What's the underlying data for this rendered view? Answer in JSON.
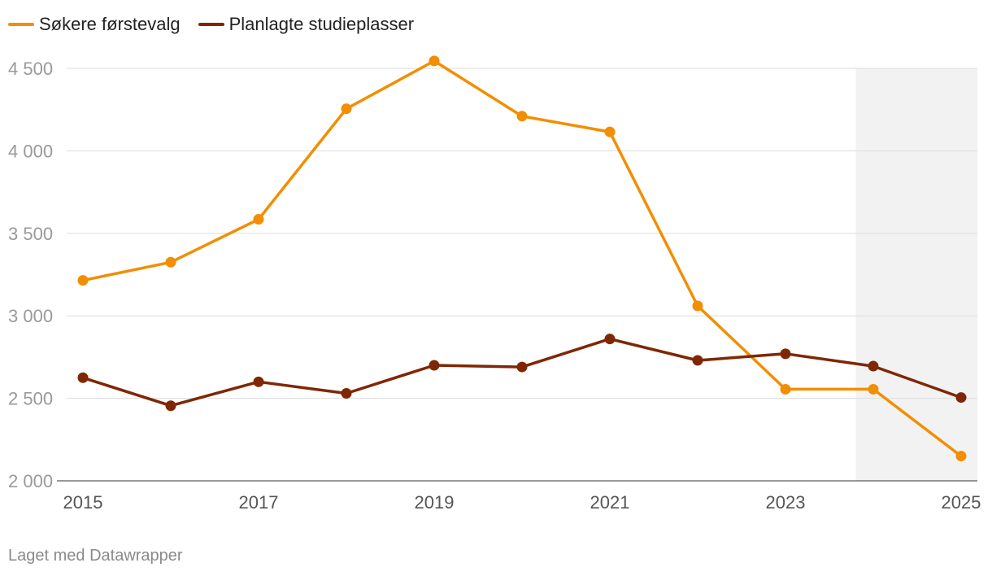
{
  "legend": [
    {
      "label": "Søkere førstevalg",
      "color": "#f28e00"
    },
    {
      "label": "Planlagte studieplasser",
      "color": "#7f2704"
    }
  ],
  "footer": "Laget med Datawrapper",
  "colors": {
    "grid": "#dddddd",
    "axis_text": "#999999",
    "x_axis_text": "#555555",
    "shade": "#f2f2f2"
  },
  "chart_data": {
    "type": "line",
    "x": [
      2015,
      2016,
      2017,
      2018,
      2019,
      2020,
      2021,
      2022,
      2023,
      2024,
      2025
    ],
    "x_tick_labels": [
      "2015",
      "2017",
      "2019",
      "2021",
      "2023",
      "2025"
    ],
    "y_tick_labels": [
      "2 000",
      "2 500",
      "3 000",
      "3 500",
      "4 000",
      "4 500"
    ],
    "ylim": [
      2000,
      4500
    ],
    "y_ticks": [
      2000,
      2500,
      3000,
      3500,
      4000,
      4500
    ],
    "grid": true,
    "legend_position": "top-left",
    "highlight_range": [
      2023.8,
      2025.2
    ],
    "series": [
      {
        "name": "Søkere førstevalg",
        "color": "#f28e00",
        "values": [
          3215,
          3325,
          3585,
          4255,
          4545,
          4210,
          4115,
          3060,
          2555,
          2555,
          2150
        ]
      },
      {
        "name": "Planlagte studieplasser",
        "color": "#7f2704",
        "values": [
          2625,
          2455,
          2600,
          2530,
          2700,
          2690,
          2860,
          2730,
          2770,
          2695,
          2505
        ]
      }
    ]
  }
}
